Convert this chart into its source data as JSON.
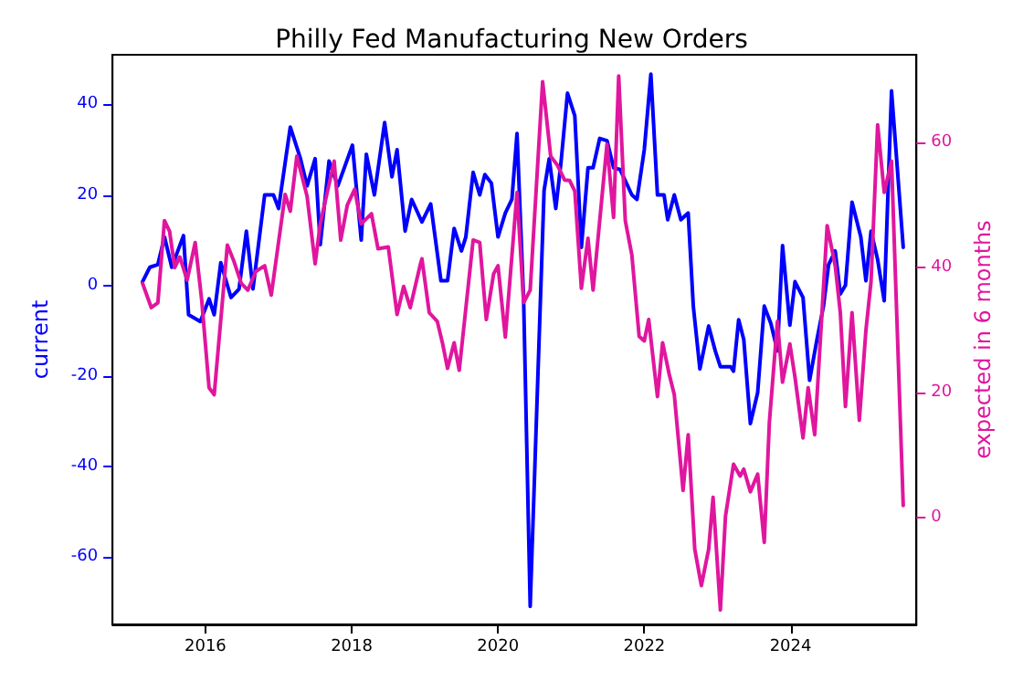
{
  "chart_data": {
    "type": "line",
    "title": "Philly Fed Manufacturing New Orders",
    "ylabel": "current",
    "y2label": "expected in 6 months",
    "xlim": [
      2014.73,
      2025.72
    ],
    "xticks": [
      2016,
      2018,
      2020,
      2022,
      2024
    ],
    "ylim": [
      -75,
      51
    ],
    "yticks": [
      -60,
      -40,
      -20,
      0,
      20,
      40
    ],
    "y2lim": [
      -17,
      74
    ],
    "y2ticks": [
      0,
      20,
      40,
      60
    ],
    "grid": false,
    "line_style": "solid",
    "series": [
      {
        "color": "#0000ff",
        "x": [
          2015.14,
          2015.24,
          2015.35,
          2015.44,
          2015.54,
          2015.7,
          2015.77,
          2015.93,
          2016.05,
          2016.12,
          2016.21,
          2016.35,
          2016.46,
          2016.56,
          2016.65,
          2016.81,
          2016.93,
          2017.0,
          2017.16,
          2017.3,
          2017.39,
          2017.5,
          2017.57,
          2017.69,
          2017.81,
          2018.01,
          2018.13,
          2018.2,
          2018.31,
          2018.45,
          2018.55,
          2018.62,
          2018.73,
          2018.82,
          2018.96,
          2019.08,
          2019.22,
          2019.31,
          2019.4,
          2019.5,
          2019.56,
          2019.66,
          2019.75,
          2019.82,
          2019.91,
          2020.0,
          2020.1,
          2020.19,
          2020.26,
          2020.35,
          2020.44,
          2020.63,
          2020.7,
          2020.79,
          2020.86,
          2020.95,
          2021.05,
          2021.14,
          2021.23,
          2021.3,
          2021.39,
          2021.49,
          2021.58,
          2021.67,
          2021.83,
          2021.9,
          2022.0,
          2022.09,
          2022.18,
          2022.27,
          2022.32,
          2022.41,
          2022.5,
          2022.6,
          2022.67,
          2022.76,
          2022.88,
          2022.97,
          2023.04,
          2023.18,
          2023.22,
          2023.29,
          2023.36,
          2023.45,
          2023.55,
          2023.64,
          2023.73,
          2023.82,
          2023.89,
          2023.99,
          2024.06,
          2024.17,
          2024.26,
          2024.36,
          2024.45,
          2024.52,
          2024.61,
          2024.68,
          2024.75,
          2024.84,
          2024.96,
          2025.03,
          2025.1,
          2025.19,
          2025.28,
          2025.38,
          2025.54
        ],
        "values": [
          0.8,
          4,
          4.6,
          10.7,
          4,
          11,
          -6.5,
          -8,
          -3,
          -6.5,
          5,
          -2.7,
          -0.8,
          12,
          -0.8,
          20,
          20,
          17,
          35,
          28,
          22,
          28,
          9,
          27.5,
          22,
          31,
          10,
          29,
          20,
          36,
          24,
          30,
          12,
          19,
          14,
          18,
          1,
          1,
          12.6,
          7.6,
          10.7,
          25,
          20,
          24.5,
          22.6,
          10.7,
          16,
          19,
          33.6,
          -3,
          -71,
          21,
          28,
          17,
          27,
          42.5,
          37.5,
          8.4,
          26,
          26,
          32.5,
          32,
          26,
          25.6,
          20,
          19,
          30,
          46.7,
          20,
          20,
          14.5,
          20,
          14.5,
          16,
          -4.6,
          -18.5,
          -9,
          -14.5,
          -18,
          -18,
          -19,
          -7.6,
          -12,
          -30.6,
          -23.7,
          -4.6,
          -8.4,
          -14.5,
          8.8,
          -8.8,
          0.8,
          -2.7,
          -21,
          -12,
          -4.6,
          4.6,
          7.6,
          -1.9,
          0,
          18.4,
          10.7,
          1,
          12,
          5.7,
          -3.4,
          43,
          8.4
        ]
      },
      {
        "color": "#e0169e",
        "axis": "y2",
        "x": [
          2015.14,
          2015.26,
          2015.35,
          2015.44,
          2015.51,
          2015.58,
          2015.65,
          2015.75,
          2015.86,
          2015.95,
          2016.05,
          2016.12,
          2016.3,
          2016.39,
          2016.49,
          2016.58,
          2016.69,
          2016.81,
          2016.9,
          2017.09,
          2017.16,
          2017.25,
          2017.39,
          2017.5,
          2017.57,
          2017.76,
          2017.85,
          2017.94,
          2018.04,
          2018.13,
          2018.27,
          2018.36,
          2018.5,
          2018.62,
          2018.71,
          2018.8,
          2018.94,
          2018.96,
          2019.06,
          2019.17,
          2019.24,
          2019.31,
          2019.4,
          2019.47,
          2019.66,
          2019.75,
          2019.84,
          2019.94,
          2020.0,
          2020.1,
          2020.26,
          2020.35,
          2020.44,
          2020.61,
          2020.72,
          2020.81,
          2020.91,
          2020.98,
          2021.05,
          2021.14,
          2021.23,
          2021.3,
          2021.49,
          2021.58,
          2021.65,
          2021.74,
          2021.83,
          2021.93,
          2022.0,
          2022.06,
          2022.18,
          2022.25,
          2022.34,
          2022.41,
          2022.53,
          2022.6,
          2022.69,
          2022.78,
          2022.88,
          2022.94,
          2023.04,
          2023.11,
          2023.22,
          2023.31,
          2023.36,
          2023.45,
          2023.55,
          2023.64,
          2023.71,
          2023.82,
          2023.89,
          2023.99,
          2024.06,
          2024.17,
          2024.24,
          2024.33,
          2024.5,
          2024.61,
          2024.68,
          2024.75,
          2024.84,
          2024.94,
          2025.03,
          2025.1,
          2025.19,
          2025.28,
          2025.38,
          2025.54
        ],
        "values": [
          37.5,
          33.6,
          34.4,
          47.5,
          45.8,
          40,
          41.7,
          38,
          44,
          34.7,
          20.8,
          19.7,
          43.6,
          41,
          37.5,
          36.4,
          39.4,
          40.3,
          35.6,
          51.7,
          49,
          57.8,
          51.4,
          40.6,
          47,
          57,
          44.4,
          50,
          52.5,
          47,
          48.6,
          43,
          43.3,
          32.5,
          37,
          33.6,
          40.6,
          41.4,
          32.8,
          31.4,
          28,
          23.9,
          28,
          23.6,
          44.4,
          44,
          31.7,
          39,
          40.3,
          28.9,
          52,
          34.4,
          36.4,
          69.7,
          57.8,
          56.4,
          54,
          53.9,
          52.2,
          36.7,
          44.7,
          36.4,
          59.7,
          48,
          70.6,
          47.5,
          42,
          29,
          28.3,
          31.7,
          19.4,
          28,
          23,
          19.7,
          4.4,
          13.3,
          -5,
          -10.8,
          -5,
          3.3,
          -14.7,
          0.3,
          8.6,
          6.7,
          7.8,
          4.2,
          7,
          -3.9,
          15.3,
          31.4,
          21.7,
          27.8,
          22.5,
          12.8,
          20.8,
          13.3,
          46.7,
          40.3,
          32.8,
          17.8,
          32.8,
          15.6,
          30,
          37.8,
          62.8,
          52,
          57,
          2
        ]
      }
    ]
  }
}
